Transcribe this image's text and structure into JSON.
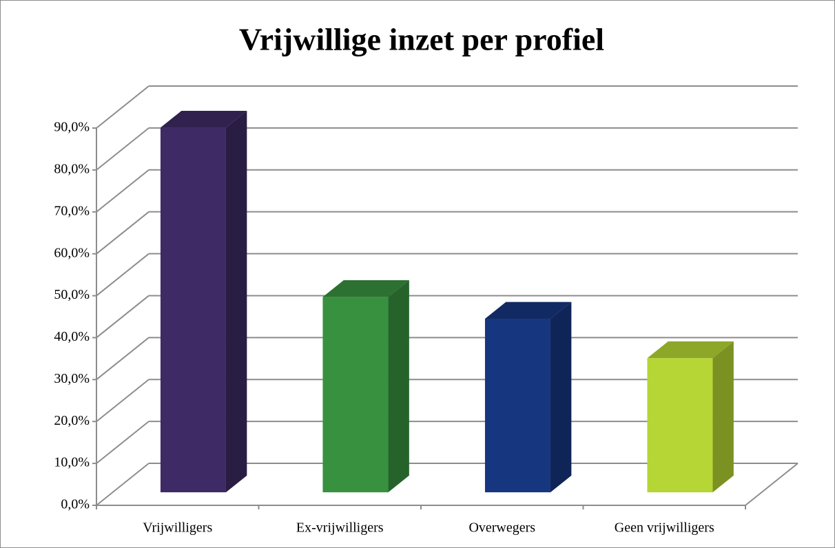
{
  "chart_data": {
    "type": "bar3d",
    "title": "Vrijwillige inzet per profiel",
    "categories": [
      "Vrijwilligers",
      "Ex-vrijwilligers",
      "Overwegers",
      "Geen vrijwilligers"
    ],
    "values": [
      87,
      46.6,
      41.4,
      32
    ],
    "colors": [
      "#3e2a64",
      "#38913f",
      "#163680",
      "#b5d634"
    ],
    "ylim": [
      0,
      90
    ],
    "yticks": [
      {
        "value": 0,
        "label": "0,0%"
      },
      {
        "value": 10,
        "label": "10,0%"
      },
      {
        "value": 20,
        "label": "20,0%"
      },
      {
        "value": 30,
        "label": "30,0%"
      },
      {
        "value": 40,
        "label": "40,0%"
      },
      {
        "value": 50,
        "label": "50,0%"
      },
      {
        "value": 60,
        "label": "60,0%"
      },
      {
        "value": 70,
        "label": "70,0%"
      },
      {
        "value": 80,
        "label": "80,0%"
      },
      {
        "value": 90,
        "label": "90,0%"
      }
    ],
    "grid": true
  }
}
